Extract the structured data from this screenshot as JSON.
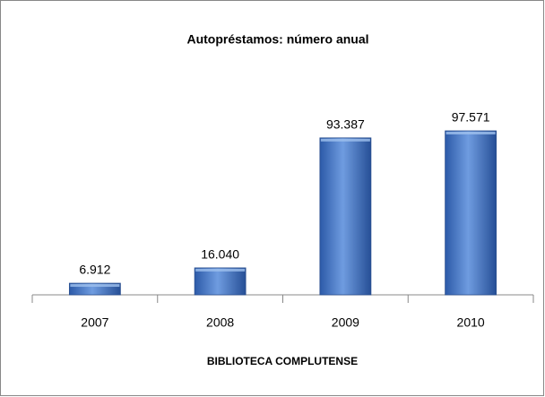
{
  "chart_data": {
    "type": "bar",
    "title": "Autopréstamos: número anual",
    "x_label": "BIBLIOTECA COMPLUTENSE",
    "categories": [
      "2007",
      "2008",
      "2009",
      "2010"
    ],
    "values": [
      6912,
      16040,
      93387,
      97571
    ],
    "value_labels": [
      "6.912",
      "16.040",
      "93.387",
      "97.571"
    ],
    "color": "#3f6fbf"
  }
}
